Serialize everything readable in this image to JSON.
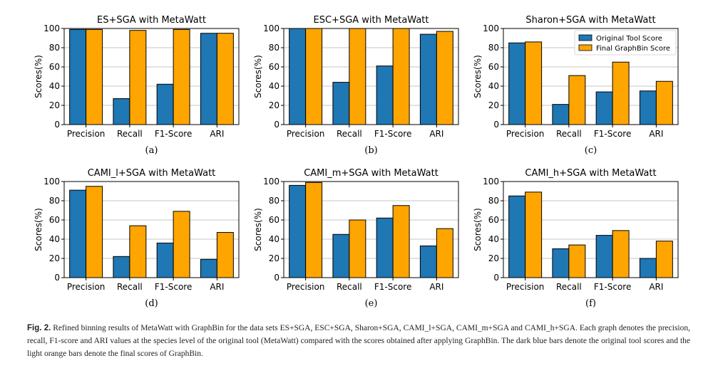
{
  "colors": {
    "original": "#1f77b4",
    "final": "#ffa500"
  },
  "chart_data": [
    {
      "type": "bar",
      "title": "ES+SGA with MetaWatt",
      "panel_label": "(a)",
      "categories": [
        "Precision",
        "Recall",
        "F1-Score",
        "ARI"
      ],
      "series": [
        {
          "name": "Original Tool Score",
          "values": [
            99,
            27,
            42,
            95
          ]
        },
        {
          "name": "Final GraphBin Score",
          "values": [
            99,
            98,
            99,
            95
          ]
        }
      ],
      "ylabel": "Scores(%)",
      "ylim": [
        0,
        100
      ],
      "yticks": [
        0,
        20,
        40,
        60,
        80,
        100
      ],
      "grid": true,
      "legend": null
    },
    {
      "type": "bar",
      "title": "ESC+SGA with MetaWatt",
      "panel_label": "(b)",
      "categories": [
        "Precision",
        "Recall",
        "F1-Score",
        "ARI"
      ],
      "series": [
        {
          "name": "Original Tool Score",
          "values": [
            100,
            44,
            61,
            94
          ]
        },
        {
          "name": "Final GraphBin Score",
          "values": [
            100,
            100,
            100,
            97
          ]
        }
      ],
      "ylabel": "Scores(%)",
      "ylim": [
        0,
        100
      ],
      "yticks": [
        0,
        20,
        40,
        60,
        80,
        100
      ],
      "grid": true,
      "legend": null
    },
    {
      "type": "bar",
      "title": "Sharon+SGA with MetaWatt",
      "panel_label": "(c)",
      "categories": [
        "Precision",
        "Recall",
        "F1-Score",
        "ARI"
      ],
      "series": [
        {
          "name": "Original Tool Score",
          "values": [
            85,
            21,
            34,
            35
          ]
        },
        {
          "name": "Final GraphBin Score",
          "values": [
            86,
            51,
            65,
            45
          ]
        }
      ],
      "ylabel": "Scores(%)",
      "ylim": [
        0,
        100
      ],
      "yticks": [
        0,
        20,
        40,
        60,
        80,
        100
      ],
      "grid": true,
      "legend": "top-right"
    },
    {
      "type": "bar",
      "title": "CAMI_l+SGA with MetaWatt",
      "panel_label": "(d)",
      "categories": [
        "Precision",
        "Recall",
        "F1-Score",
        "ARI"
      ],
      "series": [
        {
          "name": "Original Tool Score",
          "values": [
            91,
            22,
            36,
            19
          ]
        },
        {
          "name": "Final GraphBin Score",
          "values": [
            95,
            54,
            69,
            47
          ]
        }
      ],
      "ylabel": "Scores(%)",
      "ylim": [
        0,
        100
      ],
      "yticks": [
        0,
        20,
        40,
        60,
        80,
        100
      ],
      "grid": true,
      "legend": null
    },
    {
      "type": "bar",
      "title": "CAMI_m+SGA with MetaWatt",
      "panel_label": "(e)",
      "categories": [
        "Precision",
        "Recall",
        "F1-Score",
        "ARI"
      ],
      "series": [
        {
          "name": "Original Tool Score",
          "values": [
            96,
            45,
            62,
            33
          ]
        },
        {
          "name": "Final GraphBin Score",
          "values": [
            99,
            60,
            75,
            51
          ]
        }
      ],
      "ylabel": "Scores(%)",
      "ylim": [
        0,
        100
      ],
      "yticks": [
        0,
        20,
        40,
        60,
        80,
        100
      ],
      "grid": true,
      "legend": null
    },
    {
      "type": "bar",
      "title": "CAMI_h+SGA with MetaWatt",
      "panel_label": "(f)",
      "categories": [
        "Precision",
        "Recall",
        "F1-Score",
        "ARI"
      ],
      "series": [
        {
          "name": "Original Tool Score",
          "values": [
            85,
            30,
            44,
            20
          ]
        },
        {
          "name": "Final GraphBin Score",
          "values": [
            89,
            34,
            49,
            38
          ]
        }
      ],
      "ylabel": "Scores(%)",
      "ylim": [
        0,
        100
      ],
      "yticks": [
        0,
        20,
        40,
        60,
        80,
        100
      ],
      "grid": true,
      "legend": null
    }
  ],
  "caption": {
    "label": "Fig. 2.",
    "text": "Refined binning results of MetaWatt with GraphBin for the data sets ES+SGA, ESC+SGA, Sharon+SGA, CAMI_l+SGA, CAMI_m+SGA and CAMI_h+SGA. Each graph denotes the precision, recall, F1-score and ARI values at the species level of the original tool (MetaWatt) compared with the scores obtained after applying GraphBin. The dark blue bars denote the original tool scores and the light orange bars denote the final scores of GraphBin."
  }
}
